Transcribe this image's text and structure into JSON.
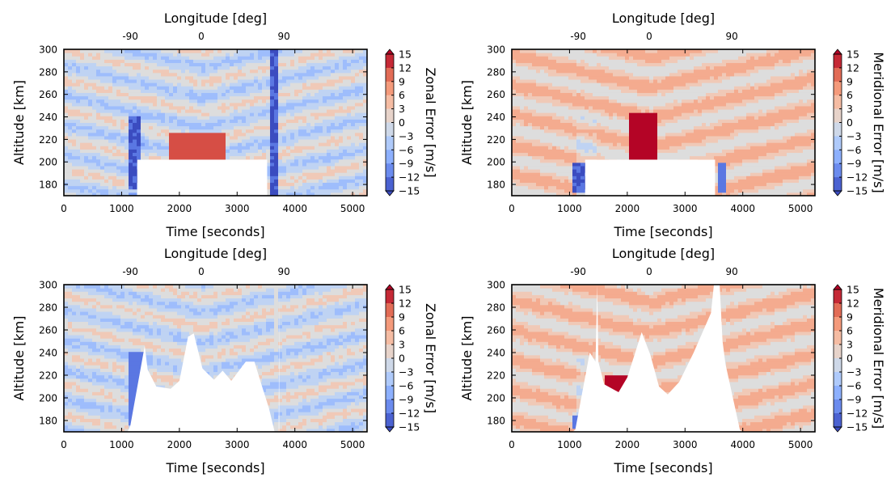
{
  "chart_data": [
    {
      "type": "heatmap",
      "panel": "top-left",
      "xlabel": "Time [seconds]",
      "top_xlabel": "Longitude [deg]",
      "ylabel": "Altitude [km]",
      "colorbar_label": "Zonal Error [m/s]",
      "xlim": [
        0,
        5250
      ],
      "ylim": [
        170,
        300
      ],
      "xticks": [
        "0",
        "1000",
        "2000",
        "3000",
        "4000",
        "5000"
      ],
      "yticks": [
        "180",
        "200",
        "220",
        "240",
        "260",
        "280",
        "300"
      ],
      "top_xticks": [
        {
          "time": 1150,
          "label": "-90"
        },
        {
          "time": 2380,
          "label": "0"
        },
        {
          "time": 3810,
          "label": "90"
        }
      ],
      "colorbar_ticks": [
        "15",
        "12",
        "9",
        "6",
        "3",
        "0",
        "−3",
        "−6",
        "−9",
        "−12",
        "−15"
      ],
      "clim": [
        -15,
        15
      ],
      "colormap": "coolwarm",
      "masked_region": {
        "kind": "box",
        "time": [
          1270,
          3520
        ],
        "alt_max": 202
      },
      "features": [
        {
          "time": [
            1100,
            1300
          ],
          "alt": [
            175,
            240
          ],
          "value": -14
        },
        {
          "time": [
            1800,
            2800
          ],
          "alt": [
            200,
            225
          ],
          "value": 12
        },
        {
          "time": [
            3580,
            3700
          ],
          "alt": [
            170,
            300
          ],
          "value": -14
        }
      ]
    },
    {
      "type": "heatmap",
      "panel": "top-right",
      "xlabel": "Time [seconds]",
      "top_xlabel": "Longitude [deg]",
      "ylabel": "Altitude [km]",
      "colorbar_label": "Meridional Error [m/s]",
      "xlim": [
        0,
        5250
      ],
      "ylim": [
        170,
        300
      ],
      "xticks": [
        "0",
        "1000",
        "2000",
        "3000",
        "4000",
        "5000"
      ],
      "yticks": [
        "180",
        "200",
        "220",
        "240",
        "260",
        "280",
        "300"
      ],
      "top_xticks": [
        {
          "time": 1150,
          "label": "-90"
        },
        {
          "time": 2380,
          "label": "0"
        },
        {
          "time": 3810,
          "label": "90"
        }
      ],
      "colorbar_ticks": [
        "15",
        "12",
        "9",
        "6",
        "3",
        "0",
        "−3",
        "−6",
        "−9",
        "−12",
        "−15"
      ],
      "clim": [
        -15,
        15
      ],
      "colormap": "coolwarm",
      "masked_region": {
        "kind": "box",
        "time": [
          1270,
          3520
        ],
        "alt_max": 202
      },
      "features": [
        {
          "time": [
            2000,
            2500
          ],
          "alt": [
            200,
            245
          ],
          "value": 15
        },
        {
          "time": [
            1050,
            1300
          ],
          "alt": [
            172,
            200
          ],
          "value": -14
        },
        {
          "time": [
            3550,
            3700
          ],
          "alt": [
            172,
            200
          ],
          "value": -12
        }
      ]
    },
    {
      "type": "heatmap",
      "panel": "bottom-left",
      "xlabel": "Time [seconds]",
      "top_xlabel": "Longitude [deg]",
      "ylabel": "Altitude [km]",
      "colorbar_label": "Zonal Error [m/s]",
      "xlim": [
        0,
        5250
      ],
      "ylim": [
        170,
        300
      ],
      "xticks": [
        "0",
        "1000",
        "2000",
        "3000",
        "4000",
        "5000"
      ],
      "yticks": [
        "180",
        "200",
        "220",
        "240",
        "260",
        "280",
        "300"
      ],
      "top_xticks": [
        {
          "time": 1150,
          "label": "-90"
        },
        {
          "time": 2380,
          "label": "0"
        },
        {
          "time": 3810,
          "label": "90"
        }
      ],
      "colorbar_ticks": [
        "15",
        "12",
        "9",
        "6",
        "3",
        "0",
        "−3",
        "−6",
        "−9",
        "−12",
        "−15"
      ],
      "clim": [
        -15,
        15
      ],
      "colormap": "coolwarm",
      "masked_region": {
        "kind": "profile",
        "boundary_time": [
          1100,
          1150,
          1400,
          1450,
          1600,
          1850,
          2000,
          2150,
          2250,
          2400,
          2600,
          2750,
          2900,
          3150,
          3300,
          3420,
          3550,
          3650,
          3720,
          3730
        ],
        "boundary_alt": [
          170,
          175,
          246,
          225,
          210,
          208,
          215,
          254,
          257,
          226,
          216,
          224,
          215,
          232,
          232,
          212,
          191,
          170,
          170,
          300
        ]
      },
      "features": [
        {
          "time": [
            1100,
            1400
          ],
          "alt": [
            175,
            240
          ],
          "value": -12
        },
        {
          "time": [
            3620,
            3730
          ],
          "alt": [
            240,
            300
          ],
          "value": 0
        }
      ]
    },
    {
      "type": "heatmap",
      "panel": "bottom-right",
      "xlabel": "Time [seconds]",
      "top_xlabel": "Longitude [deg]",
      "ylabel": "Altitude [km]",
      "colorbar_label": "Meridional Error [m/s]",
      "xlim": [
        0,
        5250
      ],
      "ylim": [
        170,
        300
      ],
      "xticks": [
        "0",
        "1000",
        "2000",
        "3000",
        "4000",
        "5000"
      ],
      "yticks": [
        "180",
        "200",
        "220",
        "240",
        "260",
        "280",
        "300"
      ],
      "top_xticks": [
        {
          "time": 1150,
          "label": "-90"
        },
        {
          "time": 2380,
          "label": "0"
        },
        {
          "time": 3810,
          "label": "90"
        }
      ],
      "colorbar_ticks": [
        "15",
        "12",
        "9",
        "6",
        "3",
        "0",
        "−3",
        "−6",
        "−9",
        "−12",
        "−15"
      ],
      "clim": [
        -15,
        15
      ],
      "colormap": "coolwarm",
      "masked_region": {
        "kind": "profile",
        "boundary_time": [
          1050,
          1100,
          1350,
          1450,
          1480,
          1500,
          1600,
          1850,
          2000,
          2250,
          2400,
          2550,
          2700,
          2900,
          3150,
          3450,
          3500,
          3550,
          3600,
          3650,
          3700,
          3950,
          4000
        ],
        "boundary_alt": [
          170,
          172,
          240,
          232,
          300,
          232,
          212,
          205,
          218,
          258,
          238,
          210,
          203,
          214,
          240,
          275,
          300,
          300,
          300,
          250,
          230,
          172,
          170
        ]
      },
      "features": [
        {
          "time": [
            1600,
            2100
          ],
          "alt": [
            200,
            220
          ],
          "value": 15
        },
        {
          "time": [
            1050,
            1200
          ],
          "alt": [
            172,
            185
          ],
          "value": -12
        }
      ]
    }
  ]
}
